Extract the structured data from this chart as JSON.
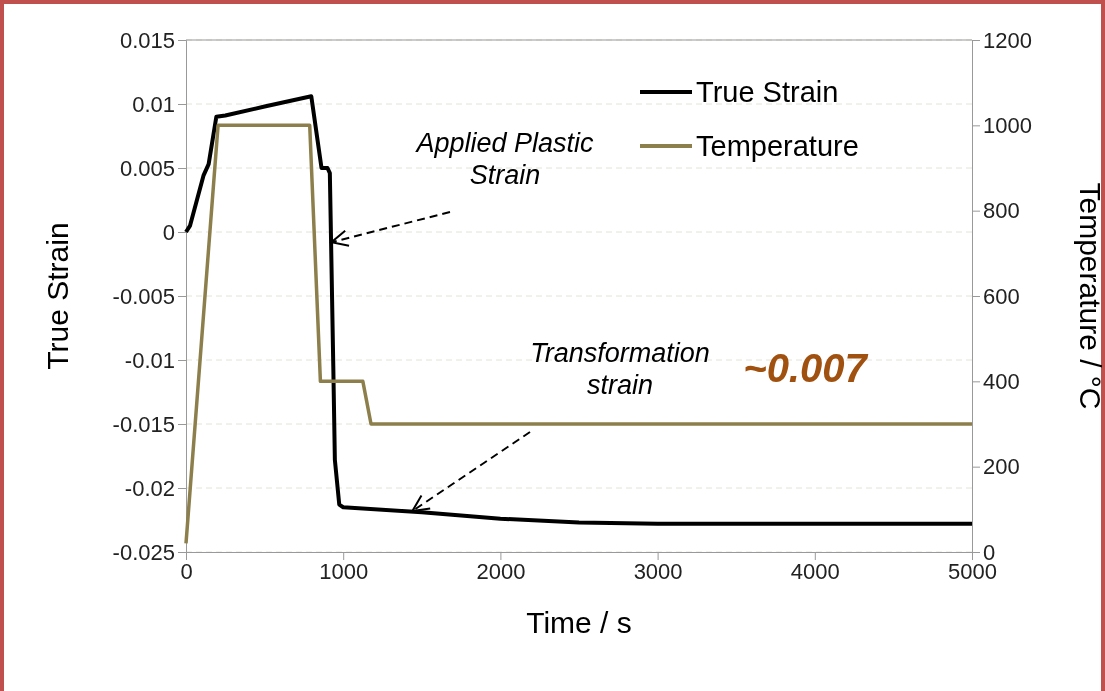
{
  "chart_data": {
    "type": "line",
    "xlabel": "Time / s",
    "ylabel": "True Strain",
    "y2label": "Temperature  / °C",
    "xlim": [
      0,
      5000
    ],
    "xticks": [
      0,
      1000,
      2000,
      3000,
      4000,
      5000
    ],
    "ylim": [
      -0.025,
      0.015
    ],
    "yticks": [
      {
        "value": -0.025,
        "label": "-0.025"
      },
      {
        "value": -0.02,
        "label": "-0.02"
      },
      {
        "value": -0.015,
        "label": "-0.015"
      },
      {
        "value": -0.01,
        "label": "-0.01"
      },
      {
        "value": -0.005,
        "label": "-0.005"
      },
      0,
      {
        "value": 0.005,
        "label": "0.005"
      },
      {
        "value": 0.01,
        "label": "0.01"
      },
      {
        "value": 0.015,
        "label": "0.015"
      }
    ],
    "y2lim": [
      0,
      1200
    ],
    "y2ticks": [
      0,
      200,
      400,
      600,
      800,
      1000,
      1200
    ],
    "grid": "y",
    "legend": "top right",
    "line_style": "solid",
    "marker": "none",
    "series": [
      {
        "name": "True Strain",
        "color": "#000000",
        "x": [
          0,
          26,
          111,
          144,
          193,
          250,
          500,
          797,
          862,
          900,
          915,
          937,
          947,
          975,
          1000,
          1500,
          2000,
          2500,
          3000,
          4000,
          5000
        ],
        "values": [
          0,
          0.0005,
          0.0044,
          0.0053,
          0.009,
          0.0091,
          0.0098,
          0.0106,
          0.005,
          0.005,
          0.0046,
          -0.0105,
          -0.0178,
          -0.0213,
          -0.0215,
          -0.0219,
          -0.0224,
          -0.0227,
          -0.0228,
          -0.0228,
          -0.0228
        ]
      },
      {
        "name": "Temperature",
        "color": "#8c7f4c",
        "axis": "y2",
        "x": [
          0,
          204,
          787,
          855,
          1125,
          1177,
          5000
        ],
        "values": [
          20,
          1000,
          1000,
          400,
          400,
          300,
          300
        ]
      }
    ],
    "annotations": [
      {
        "text": "Applied Plastic\nStrain",
        "x": 925,
        "y": -0.0008
      },
      {
        "text": "Transformation\nstrain",
        "x": 1440,
        "y": -0.0218
      },
      "~0.007"
    ]
  }
}
